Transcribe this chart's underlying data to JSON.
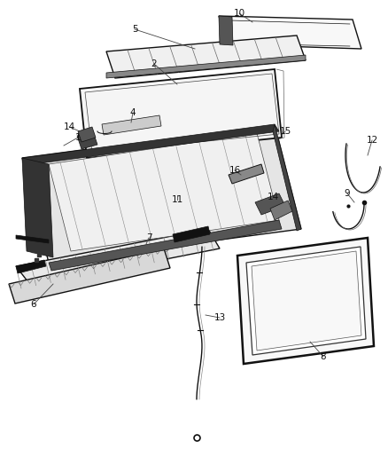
{
  "figsize": [
    4.38,
    5.33
  ],
  "dpi": 100,
  "bg": "#ffffff",
  "lc": "#1a1a1a",
  "lc_dark": "#111111",
  "lw_main": 1.0,
  "lw_thin": 0.5,
  "lw_thick": 1.8,
  "label_fs": 7.5,
  "label_color": "#111111"
}
